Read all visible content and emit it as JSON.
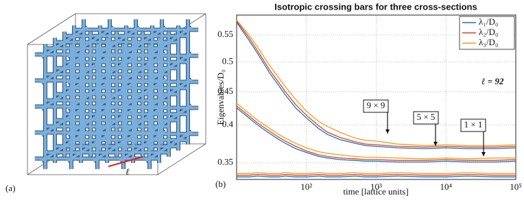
{
  "panel_a": {
    "label": "(a)",
    "length_symbol": "ℓ"
  },
  "chart_data": {
    "type": "line",
    "panel_label": "(b)",
    "title": "Isotropic crossing bars for three cross-sections",
    "xlabel": "time [lattice units]",
    "ylabel": "Eigenvalues/D₀",
    "x_log": true,
    "y_log": true,
    "grid": true,
    "legend": "upper right",
    "xlim": [
      10,
      100000
    ],
    "ylim": [
      0.33,
      0.59
    ],
    "xticks": [
      {
        "value": 100,
        "label": "10²"
      },
      {
        "value": 1000,
        "label": "10³"
      },
      {
        "value": 10000,
        "label": "10⁴"
      },
      {
        "value": 100000,
        "label": "10⁵"
      }
    ],
    "yticks": [
      0.35,
      0.4,
      0.45,
      0.5,
      0.55
    ],
    "x": [
      10,
      15,
      20,
      30,
      40,
      50,
      70,
      100,
      150,
      200,
      300,
      500,
      700,
      1000,
      2000,
      5000,
      10000,
      20000,
      50000,
      100000
    ],
    "series": [
      {
        "name": "λ₁/D₀",
        "color": "#1f6fbf",
        "values": [
          [
            0.575,
            0.54,
            0.515,
            0.48,
            0.46,
            0.445,
            0.425,
            0.41,
            0.395,
            0.387,
            0.38,
            0.375,
            0.372,
            0.371,
            0.369,
            0.368,
            0.369,
            0.368,
            0.368,
            0.369
          ],
          [
            0.425,
            0.41,
            0.4,
            0.388,
            0.38,
            0.375,
            0.368,
            0.363,
            0.358,
            0.356,
            0.354,
            0.353,
            0.352,
            0.352,
            0.351,
            0.351,
            0.352,
            0.351,
            0.351,
            0.352
          ],
          [
            0.333,
            0.333,
            0.334,
            0.333,
            0.333,
            0.334,
            0.333,
            0.333,
            0.334,
            0.333,
            0.333,
            0.334,
            0.333,
            0.333,
            0.334,
            0.333,
            0.333,
            0.334,
            0.333,
            0.333
          ]
        ]
      },
      {
        "name": "λ₂/D₀",
        "color": "#d9412b",
        "values": [
          [
            0.578,
            0.545,
            0.52,
            0.485,
            0.465,
            0.45,
            0.43,
            0.414,
            0.399,
            0.39,
            0.383,
            0.377,
            0.374,
            0.373,
            0.371,
            0.37,
            0.371,
            0.37,
            0.37,
            0.371
          ],
          [
            0.428,
            0.413,
            0.403,
            0.391,
            0.383,
            0.378,
            0.371,
            0.365,
            0.36,
            0.358,
            0.356,
            0.355,
            0.354,
            0.354,
            0.353,
            0.353,
            0.354,
            0.353,
            0.353,
            0.354
          ],
          [
            0.335,
            0.335,
            0.336,
            0.335,
            0.335,
            0.336,
            0.335,
            0.335,
            0.336,
            0.335,
            0.335,
            0.336,
            0.335,
            0.335,
            0.336,
            0.335,
            0.335,
            0.336,
            0.335,
            0.335
          ]
        ]
      },
      {
        "name": "λ₃/D₀",
        "color": "#e8a020",
        "values": [
          [
            0.58,
            0.55,
            0.527,
            0.493,
            0.473,
            0.458,
            0.438,
            0.42,
            0.405,
            0.398,
            0.39,
            0.382,
            0.379,
            0.378,
            0.374,
            0.372,
            0.373,
            0.372,
            0.372,
            0.373
          ],
          [
            0.432,
            0.417,
            0.407,
            0.395,
            0.387,
            0.382,
            0.375,
            0.369,
            0.364,
            0.362,
            0.36,
            0.358,
            0.357,
            0.357,
            0.356,
            0.355,
            0.356,
            0.355,
            0.356,
            0.356
          ],
          [
            0.337,
            0.337,
            0.338,
            0.337,
            0.337,
            0.338,
            0.337,
            0.337,
            0.338,
            0.337,
            0.337,
            0.338,
            0.337,
            0.337,
            0.338,
            0.337,
            0.337,
            0.338,
            0.337,
            0.337
          ]
        ]
      }
    ],
    "annotations": [
      "9 × 9",
      "5 × 5",
      "1 × 1",
      "ℓ = 92"
    ]
  }
}
